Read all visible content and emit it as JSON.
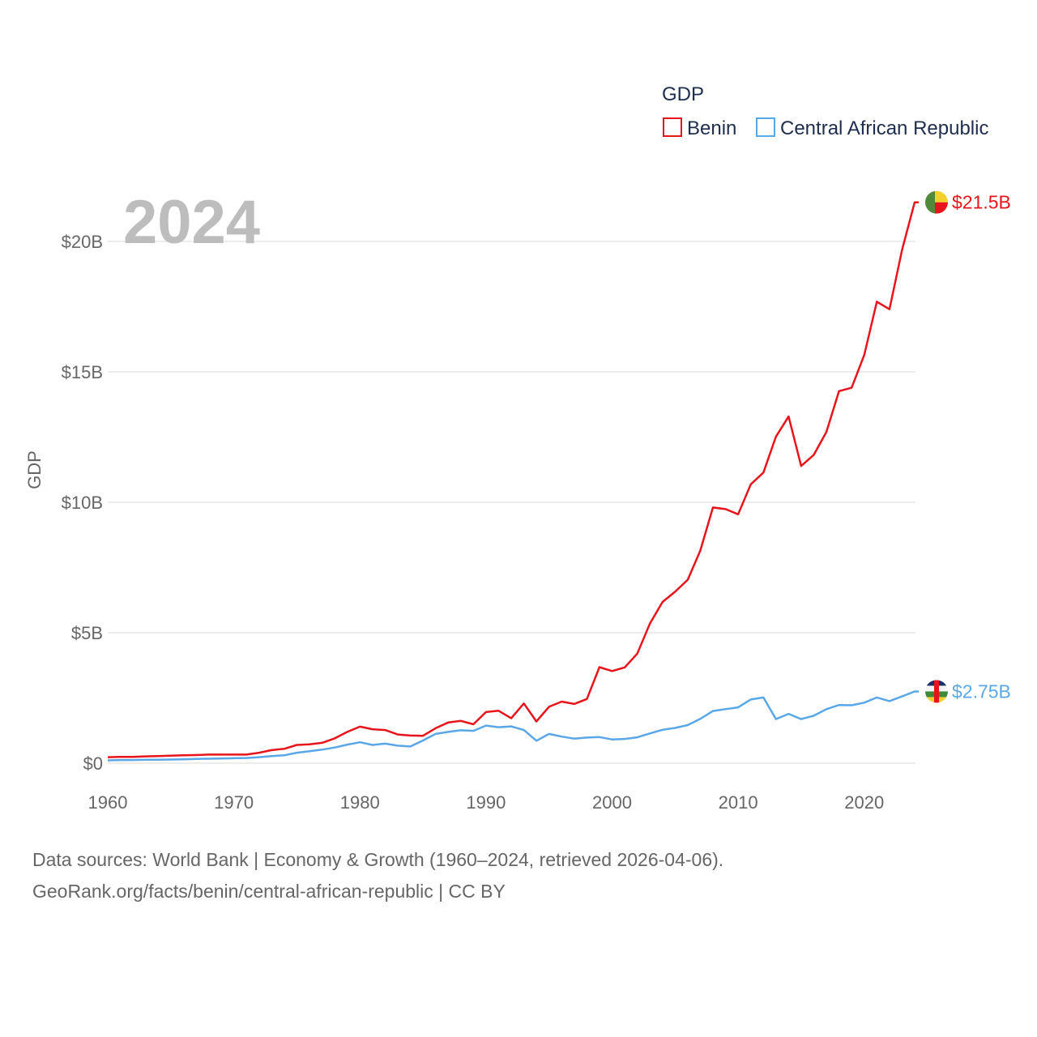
{
  "chart_data": {
    "type": "line",
    "title_year": "2024",
    "ylabel": "GDP",
    "xlabel": "",
    "legend_title": "GDP",
    "legend_position": "top-right",
    "xlim": [
      1960,
      2024
    ],
    "ylim": [
      0,
      22
    ],
    "x_ticks": [
      1960,
      1970,
      1980,
      1990,
      2000,
      2010,
      2020
    ],
    "y_ticks": [
      {
        "value": 0,
        "label": "$0"
      },
      {
        "value": 5,
        "label": "$5B"
      },
      {
        "value": 10,
        "label": "$10B"
      },
      {
        "value": 15,
        "label": "$15B"
      },
      {
        "value": 20,
        "label": "$20B"
      }
    ],
    "x": [
      1960,
      1961,
      1962,
      1963,
      1964,
      1965,
      1966,
      1967,
      1968,
      1969,
      1970,
      1971,
      1972,
      1973,
      1974,
      1975,
      1976,
      1977,
      1978,
      1979,
      1980,
      1981,
      1982,
      1983,
      1984,
      1985,
      1986,
      1987,
      1988,
      1989,
      1990,
      1991,
      1992,
      1993,
      1994,
      1995,
      1996,
      1997,
      1998,
      1999,
      2000,
      2001,
      2002,
      2003,
      2004,
      2005,
      2006,
      2007,
      2008,
      2009,
      2010,
      2011,
      2012,
      2013,
      2014,
      2015,
      2016,
      2017,
      2018,
      2019,
      2020,
      2021,
      2022,
      2023,
      2024
    ],
    "series": [
      {
        "name": "Benin",
        "color": "#e8141b",
        "end_label": "$21.5B",
        "values": [
          0.23,
          0.24,
          0.24,
          0.26,
          0.27,
          0.29,
          0.3,
          0.31,
          0.33,
          0.33,
          0.33,
          0.33,
          0.4,
          0.5,
          0.55,
          0.7,
          0.72,
          0.78,
          0.95,
          1.2,
          1.4,
          1.3,
          1.27,
          1.1,
          1.06,
          1.05,
          1.34,
          1.56,
          1.62,
          1.49,
          1.96,
          2.01,
          1.72,
          2.29,
          1.6,
          2.16,
          2.36,
          2.27,
          2.46,
          3.68,
          3.53,
          3.67,
          4.2,
          5.35,
          6.18,
          6.57,
          7.03,
          8.15,
          9.8,
          9.74,
          9.54,
          10.69,
          11.14,
          12.52,
          13.29,
          11.39,
          11.82,
          12.7,
          14.26,
          14.39,
          15.65,
          17.69,
          17.4,
          19.67,
          21.5
        ]
      },
      {
        "name": "Central African Republic",
        "color": "#5aa7e8",
        "end_label": "$2.75B",
        "values": [
          0.11,
          0.12,
          0.12,
          0.13,
          0.13,
          0.14,
          0.15,
          0.16,
          0.17,
          0.18,
          0.19,
          0.2,
          0.23,
          0.27,
          0.3,
          0.4,
          0.46,
          0.52,
          0.6,
          0.71,
          0.8,
          0.7,
          0.75,
          0.67,
          0.64,
          0.87,
          1.12,
          1.2,
          1.26,
          1.24,
          1.44,
          1.38,
          1.41,
          1.27,
          0.86,
          1.12,
          1.02,
          0.94,
          0.98,
          1.0,
          0.91,
          0.93,
          0.99,
          1.14,
          1.28,
          1.35,
          1.46,
          1.7,
          2.0,
          2.07,
          2.14,
          2.44,
          2.52,
          1.69,
          1.89,
          1.69,
          1.82,
          2.07,
          2.23,
          2.22,
          2.32,
          2.52,
          2.38,
          2.56,
          2.75
        ]
      }
    ],
    "grid": true
  },
  "source": {
    "line1": "Data sources: World Bank | Economy & Growth (1960–2024, retrieved 2026-04-06).",
    "line2": "GeoRank.org/facts/benin/central-african-republic | CC BY"
  }
}
